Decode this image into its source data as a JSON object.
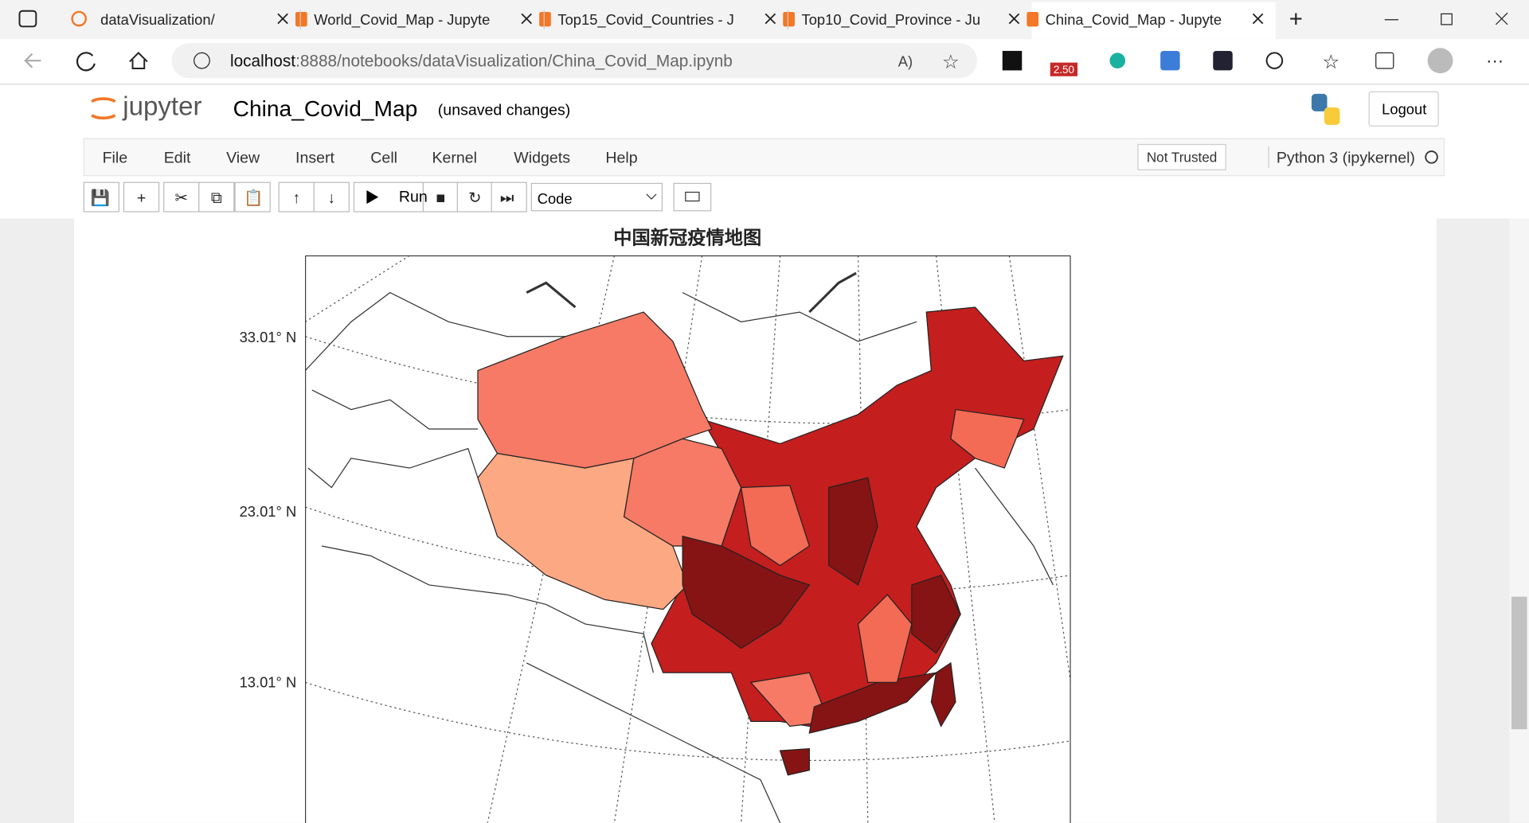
{
  "browser": {
    "tabs": [
      "dataVisualization/",
      "World_Covid_Map - Jupyte",
      "Top15_Covid_Countries - J",
      "Top10_Covid_Province - Ju",
      "China_Covid_Map - Jupyte"
    ],
    "address_host": "localhost",
    "address_rest": ":8888/notebooks/dataVisualization/China_Covid_Map.ipynb",
    "badge": "2.50"
  },
  "jupyter": {
    "logo": "jupyter",
    "notebook_name": "China_Covid_Map",
    "status": "(unsaved changes)",
    "logout": "Logout",
    "menu": [
      "File",
      "Edit",
      "View",
      "Insert",
      "Cell",
      "Kernel",
      "Widgets",
      "Help"
    ],
    "trust": "Not Trusted",
    "kernel": "Python 3 (ipykernel)",
    "run": "Run",
    "cell_type": "Code"
  },
  "figure": {
    "title": "中国新冠疫情地图",
    "lat_labels": [
      "33.01° N",
      "23.01° N",
      "13.01° N"
    ]
  }
}
